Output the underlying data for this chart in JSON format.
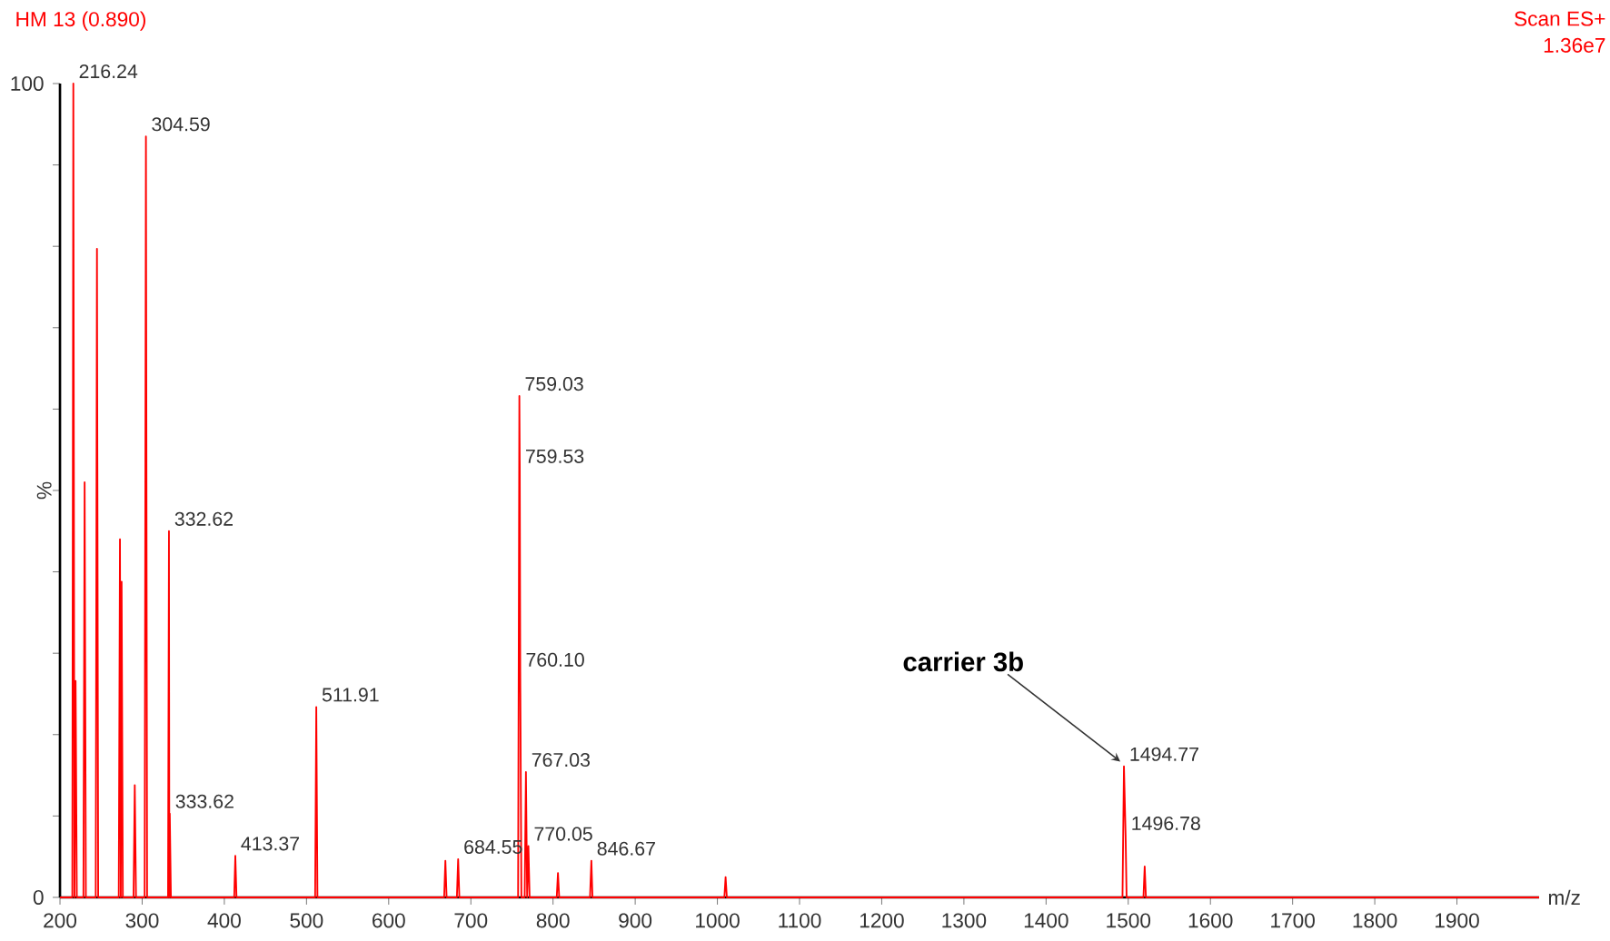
{
  "chart_data": {
    "type": "line",
    "title": "HM 13 (0.890)",
    "xlabel": "m/z",
    "ylabel": "%",
    "x": [
      200,
      215,
      216.24,
      217.6,
      219,
      220.5,
      228.5,
      230,
      231.5,
      243.5,
      245,
      246.5,
      271.5,
      273,
      274,
      275,
      276.5,
      289.5,
      291,
      292.5,
      303,
      304.59,
      306,
      331.5,
      332.62,
      333.1,
      333.62,
      335,
      412,
      413.37,
      414.8,
      510.5,
      511.91,
      513.3,
      667.5,
      669,
      670.5,
      683,
      684.55,
      686,
      757.5,
      759.03,
      759.53,
      760.1,
      761.5,
      765.5,
      767.03,
      768.5,
      770.05,
      771.5,
      804.5,
      806,
      807.5,
      845,
      846.67,
      848,
      1008.5,
      1010,
      1011.5,
      1493,
      1494.77,
      1496.78,
      1498,
      1518.5,
      1520,
      1521.5,
      2000
    ],
    "values": [
      0,
      0,
      100,
      0,
      26.6,
      0,
      0,
      51,
      0,
      0,
      79.7,
      0,
      0,
      44,
      0,
      38.8,
      0,
      0,
      13.8,
      0,
      0,
      93.5,
      0,
      0,
      45,
      0,
      10.3,
      0,
      0,
      5.1,
      0,
      0,
      23.4,
      0,
      0,
      4.5,
      0,
      0,
      4.7,
      0,
      0,
      61.6,
      52.7,
      27.7,
      0,
      0,
      15.4,
      0,
      6.3,
      0,
      0,
      3,
      0,
      0,
      4.5,
      0,
      0,
      2.5,
      0,
      0,
      16.1,
      7.6,
      0,
      0,
      3.8,
      0,
      0
    ],
    "color": "#ff0000",
    "xlim": [
      200,
      2000
    ],
    "ylim": [
      0,
      100
    ],
    "xticks": [
      200,
      300,
      400,
      500,
      600,
      700,
      800,
      900,
      1000,
      1100,
      1200,
      1300,
      1400,
      1500,
      1600,
      1700,
      1800,
      1900
    ],
    "yticks": [
      0,
      {
        "value": 10,
        "label": null
      },
      {
        "value": 20,
        "label": null
      },
      {
        "value": 30,
        "label": null
      },
      {
        "value": 40,
        "label": null
      },
      {
        "value": 50,
        "label": null
      },
      {
        "value": 60,
        "label": null
      },
      {
        "value": 70,
        "label": null
      },
      {
        "value": 80,
        "label": null
      },
      {
        "value": 90,
        "label": null
      },
      100
    ],
    "annotations": [
      "Scan ES+",
      "1.36e7",
      {
        "text": "216.24",
        "x": 216.24,
        "y": 100
      },
      {
        "text": "304.59",
        "x": 304.59,
        "y": 93.5
      },
      {
        "text": "332.62",
        "x": 332.62,
        "y": 45
      },
      {
        "text": "333.62",
        "x": 333.62,
        "y": 10.3
      },
      {
        "text": "413.37",
        "x": 413.37,
        "y": 5.1
      },
      {
        "text": "511.91",
        "x": 511.91,
        "y": 23.4
      },
      {
        "text": "684.55",
        "x": 684.55,
        "y": 4.7
      },
      {
        "text": "759.03",
        "x": 759.03,
        "y": 61.6
      },
      {
        "text": "759.53",
        "x": 759.53,
        "y": 52.7
      },
      {
        "text": "760.10",
        "x": 760.1,
        "y": 27.7
      },
      {
        "text": "767.03",
        "x": 767.03,
        "y": 15.4
      },
      {
        "text": "770.05",
        "x": 770.05,
        "y": 6.3
      },
      {
        "text": "846.67",
        "x": 846.67,
        "y": 4.5
      },
      {
        "text": "1494.77",
        "x": 1494.77,
        "y": 16.1
      },
      {
        "text": "1496.78",
        "x": 1496.78,
        "y": 7.6
      },
      {
        "text": "carrier 3b",
        "x": 1494.77,
        "y": 16.1
      }
    ],
    "grid": false
  }
}
